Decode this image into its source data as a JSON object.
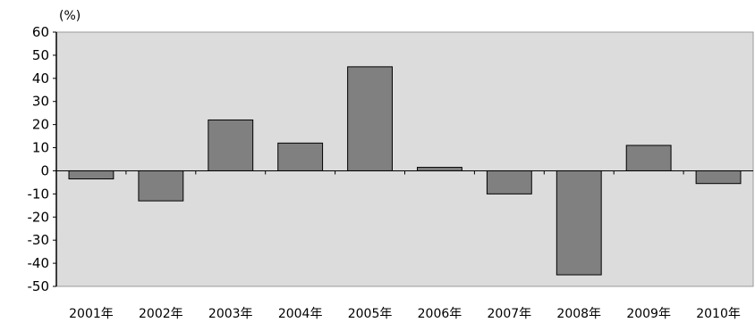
{
  "chart_data": {
    "type": "bar",
    "unit_label": "(%)",
    "categories": [
      "2001年",
      "2002年",
      "2003年",
      "2004年",
      "2005年",
      "2006年",
      "2007年",
      "2008年",
      "2009年",
      "2010年"
    ],
    "values": [
      -3.5,
      -13,
      22,
      12,
      45,
      1.5,
      -10,
      -45,
      11,
      -5.5
    ],
    "ylim": [
      -50,
      60
    ],
    "yticks": [
      60,
      50,
      40,
      30,
      20,
      10,
      0,
      -10,
      -20,
      -30,
      -40,
      -50
    ],
    "grid": false,
    "legend": "none",
    "colors": {
      "plot_background": "#dcdcdc",
      "bar_fill": "#808080",
      "bar_stroke": "#000000",
      "axis": "#000000"
    }
  }
}
